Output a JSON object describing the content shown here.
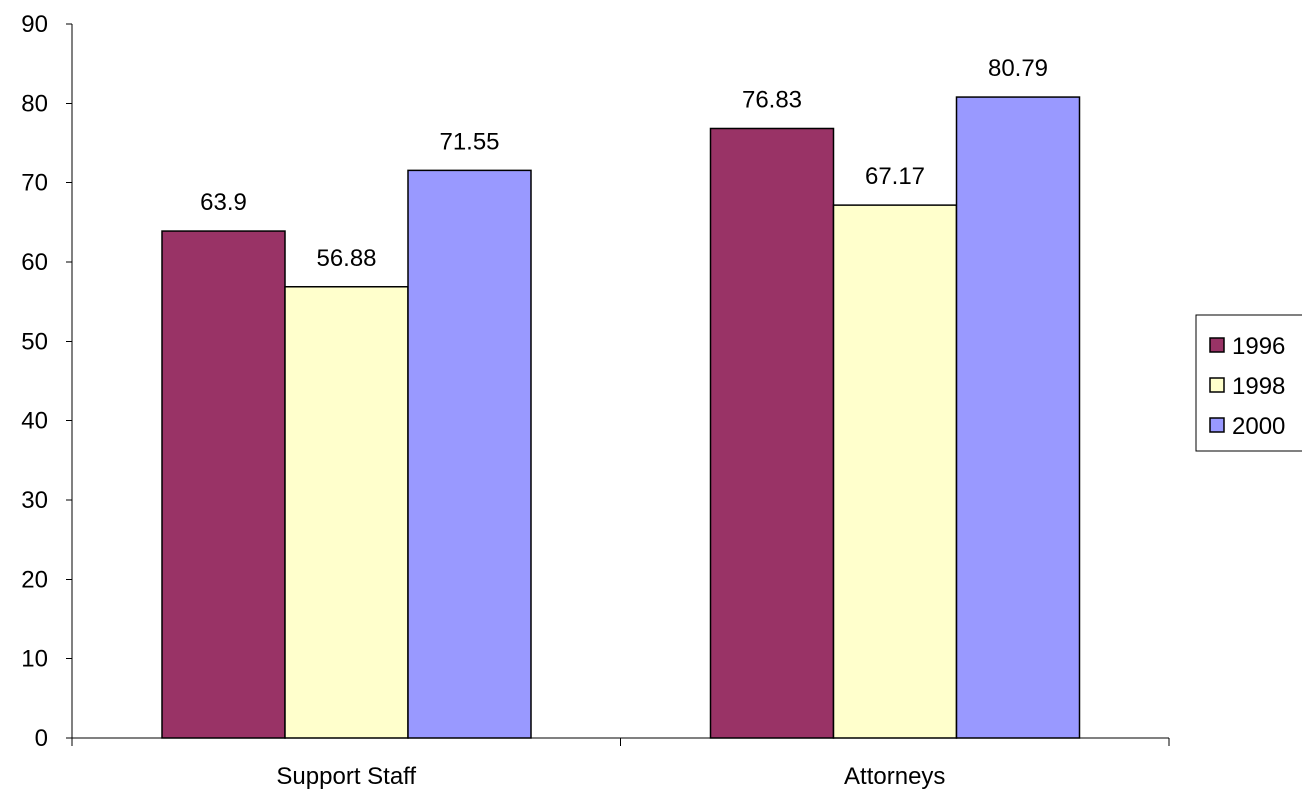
{
  "chart_data": {
    "type": "bar",
    "title": "",
    "xlabel": "",
    "ylabel": "",
    "categories": [
      "Support Staff",
      "Attorneys"
    ],
    "series": [
      {
        "name": "1996",
        "values": [
          63.9,
          76.83
        ],
        "color": "#993366"
      },
      {
        "name": "1998",
        "values": [
          56.88,
          67.17
        ],
        "color": "#FFFFCC"
      },
      {
        "name": "2000",
        "values": [
          71.55,
          80.79
        ],
        "color": "#9999FF"
      }
    ],
    "ylim": [
      0,
      90
    ],
    "yticks": [
      0,
      10,
      20,
      30,
      40,
      50,
      60,
      70,
      80,
      90
    ],
    "ytick_labels": [
      "0",
      "10",
      "20",
      "30",
      "40",
      "50",
      "60",
      "70",
      "80",
      "90"
    ],
    "data_labels": [
      [
        "63.9",
        "76.83"
      ],
      [
        "56.88",
        "67.17"
      ],
      [
        "71.55",
        "80.79"
      ]
    ],
    "grid": false,
    "legend": "right"
  }
}
